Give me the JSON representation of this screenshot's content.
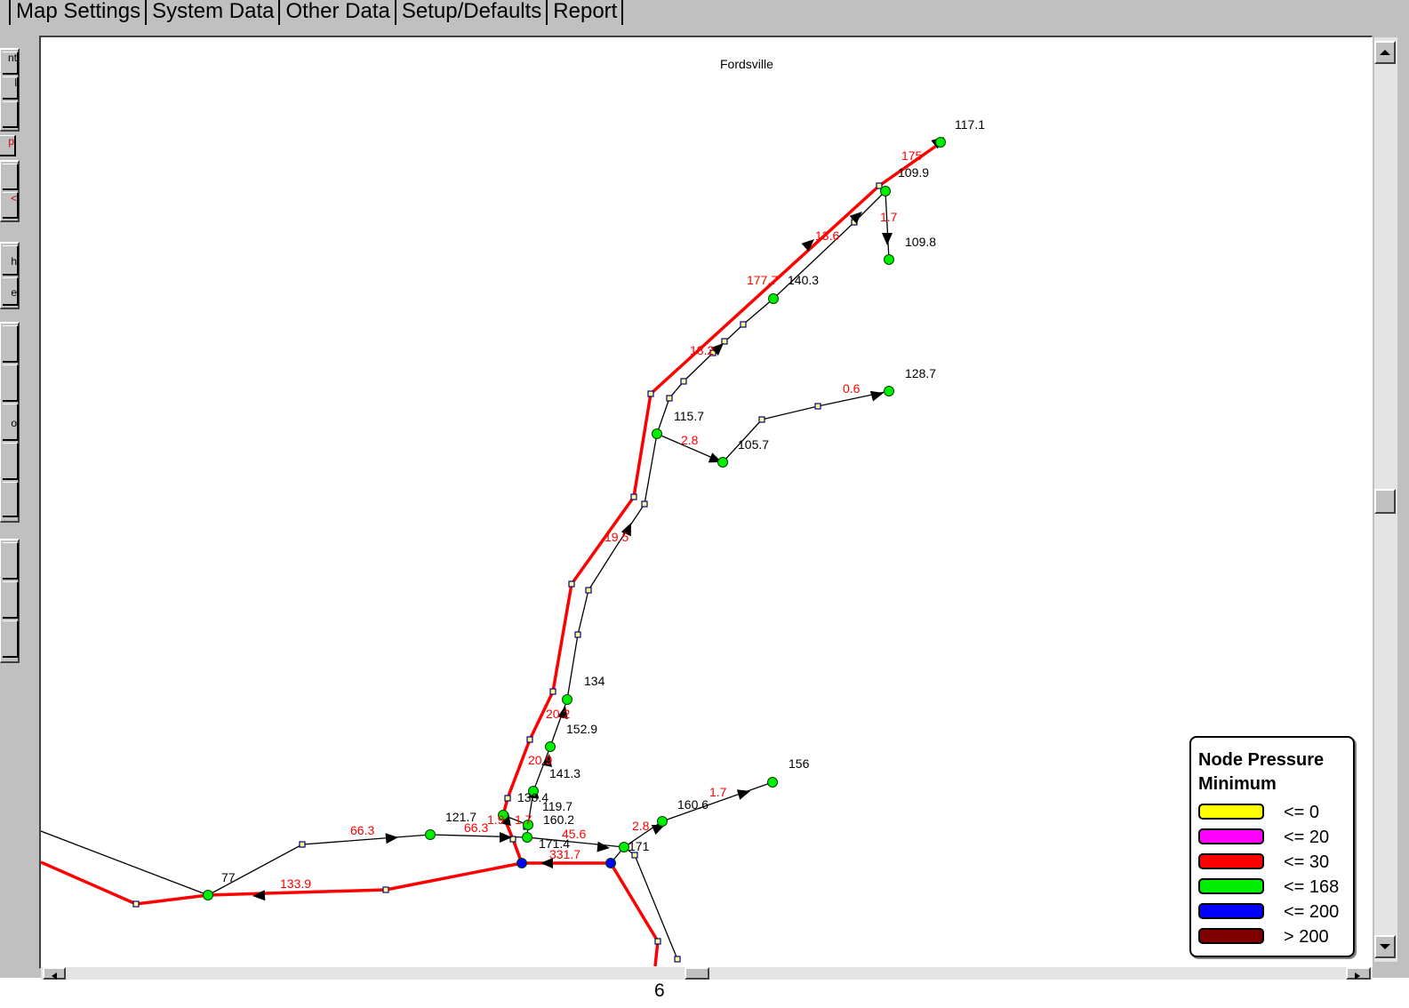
{
  "tabs": [
    "Map Settings",
    "System Data",
    "Other Data",
    "Setup/Defaults",
    "Report"
  ],
  "toolbar": {
    "buttons": [
      "nt",
      "l",
      "",
      "p",
      "",
      "<",
      "h",
      "e",
      "",
      "",
      "o",
      "",
      "",
      "",
      "",
      ""
    ]
  },
  "map": {
    "title": "Fordsville",
    "colors": {
      "pipe_highlight": "#ff0000",
      "pipe": "#000000",
      "flow_label": "#ff0000",
      "node_green": "#00ee00",
      "node_blue": "#0000ff",
      "vertex": "#ffff88"
    },
    "node_pressures": [
      "117.1",
      "109.9",
      "109.8",
      "140.3",
      "128.7",
      "115.7",
      "105.7",
      "134",
      "152.9",
      "141.3",
      "130.4",
      "119.7",
      "160.2",
      "121.7",
      "171.4",
      "171",
      "160.6",
      "156",
      "77"
    ],
    "flow_labels": [
      "175",
      "1.7",
      "13.6",
      "177.7",
      "18.2",
      "0.6",
      "2.8",
      "19.5",
      "20.2",
      "20.9",
      "1.9",
      "66.3",
      "66.3",
      "45.6",
      "331.7",
      "133.9",
      "2.8",
      "1.7",
      "1.7"
    ]
  },
  "legend": {
    "title_line1": "Node Pressure",
    "title_line2": "Minimum",
    "items": [
      {
        "label": "<= 0",
        "color": "#ffff00"
      },
      {
        "label": "<= 20",
        "color": "#ff00ff"
      },
      {
        "label": "<= 30",
        "color": "#ff0000"
      },
      {
        "label": "<= 168",
        "color": "#00ee00"
      },
      {
        "label": "<= 200",
        "color": "#0000ff"
      },
      {
        "label": "> 200",
        "color": "#800000"
      }
    ]
  },
  "page_number": "6",
  "icons": {
    "scroll_up": "arrow-up-icon",
    "scroll_down": "arrow-down-icon",
    "scroll_left": "arrow-left-icon",
    "scroll_right": "arrow-right-icon"
  }
}
